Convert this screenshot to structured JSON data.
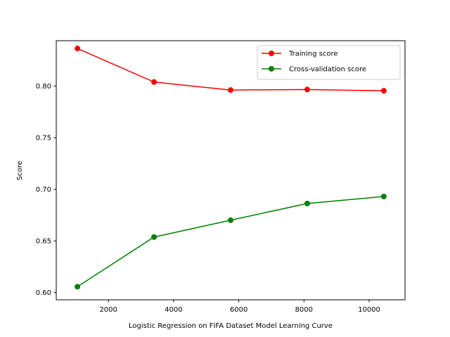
{
  "chart_data": {
    "type": "line",
    "title": "",
    "xlabel": "Logistic Regression on FIFA Dataset Model Learning Curve",
    "ylabel": "Score",
    "x": [
      1050,
      3400,
      5750,
      8100,
      10450
    ],
    "xlim": [
      400,
      11100
    ],
    "ylim": [
      0.593,
      0.844
    ],
    "x_ticks": [
      2000,
      4000,
      6000,
      8000,
      10000
    ],
    "y_ticks": [
      0.6,
      0.65,
      0.7,
      0.75,
      0.8
    ],
    "x_tick_labels": [
      "2000",
      "4000",
      "6000",
      "8000",
      "10000"
    ],
    "y_tick_labels": [
      "0.60",
      "0.65",
      "0.70",
      "0.75",
      "0.80"
    ],
    "grid": false,
    "legend_position": "top-right",
    "series": [
      {
        "name": "Training score",
        "color": "#ff0000",
        "values": [
          0.8365,
          0.804,
          0.7962,
          0.7967,
          0.7955
        ]
      },
      {
        "name": "Cross-validation score",
        "color": "#008000",
        "values": [
          0.6057,
          0.6538,
          0.6701,
          0.6863,
          0.6931
        ]
      }
    ]
  }
}
